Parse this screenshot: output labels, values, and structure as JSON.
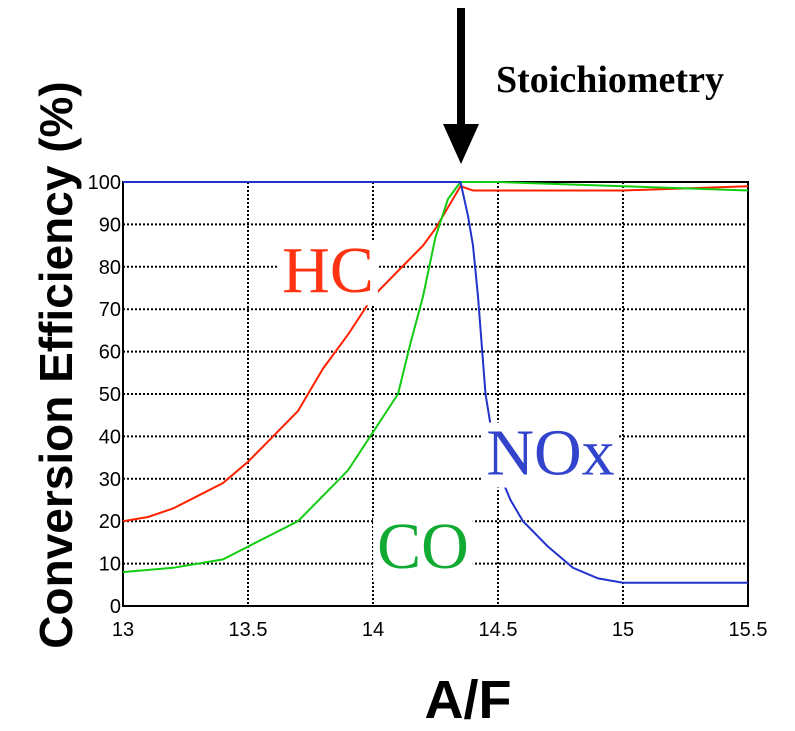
{
  "chart_data": {
    "type": "line",
    "title": "",
    "xlabel": "A/F",
    "ylabel": "Conversion Efficiency (%)",
    "xlim": [
      13,
      15.5
    ],
    "ylim": [
      0,
      100
    ],
    "xticks": [
      "13",
      "13.5",
      "14",
      "14.5",
      "15",
      "15.5"
    ],
    "yticks": [
      "0",
      "10",
      "20",
      "30",
      "40",
      "50",
      "60",
      "70",
      "80",
      "90",
      "100"
    ],
    "grid": true,
    "annotations": [
      {
        "text": "Stoichiometry",
        "x": 14.35,
        "arrow": "down"
      }
    ],
    "series": [
      {
        "name": "HC",
        "color": "#ff2200",
        "x": [
          13.0,
          13.1,
          13.2,
          13.3,
          13.4,
          13.5,
          13.6,
          13.7,
          13.75,
          13.8,
          13.9,
          14.0,
          14.1,
          14.2,
          14.25,
          14.3,
          14.35,
          14.4,
          14.5,
          15.0,
          15.5
        ],
        "y": [
          20,
          21,
          23,
          26,
          29,
          34,
          40,
          46,
          51,
          56,
          64,
          73,
          79,
          85,
          89,
          94,
          99,
          98,
          98,
          98,
          99
        ]
      },
      {
        "name": "CO",
        "color": "#11cc11",
        "x": [
          13.0,
          13.2,
          13.4,
          13.5,
          13.6,
          13.7,
          13.8,
          13.9,
          14.0,
          14.1,
          14.15,
          14.2,
          14.25,
          14.3,
          14.35,
          14.4,
          14.5,
          15.0,
          15.5
        ],
        "y": [
          8,
          9,
          11,
          14,
          17,
          20,
          26,
          32,
          41,
          50,
          62,
          73,
          87,
          96,
          100,
          100,
          100,
          99,
          98
        ]
      },
      {
        "name": "NOx",
        "color": "#2233cc",
        "x": [
          13.0,
          13.5,
          14.0,
          14.3,
          14.35,
          14.38,
          14.4,
          14.42,
          14.45,
          14.5,
          14.55,
          14.6,
          14.7,
          14.8,
          14.9,
          15.0,
          15.5
        ],
        "y": [
          100,
          100,
          100,
          100,
          100,
          92,
          85,
          73,
          50,
          32,
          25,
          20,
          14,
          9,
          6.5,
          5.5,
          5.5
        ]
      }
    ],
    "series_labels": [
      {
        "text": "HC",
        "color": "#ff3311",
        "x": 13.82,
        "y": 74
      },
      {
        "text": "CO",
        "color": "#11aa33",
        "x": 14.2,
        "y": 9
      },
      {
        "text": "NOx",
        "color": "#3344cc",
        "x": 14.71,
        "y": 31
      }
    ]
  }
}
